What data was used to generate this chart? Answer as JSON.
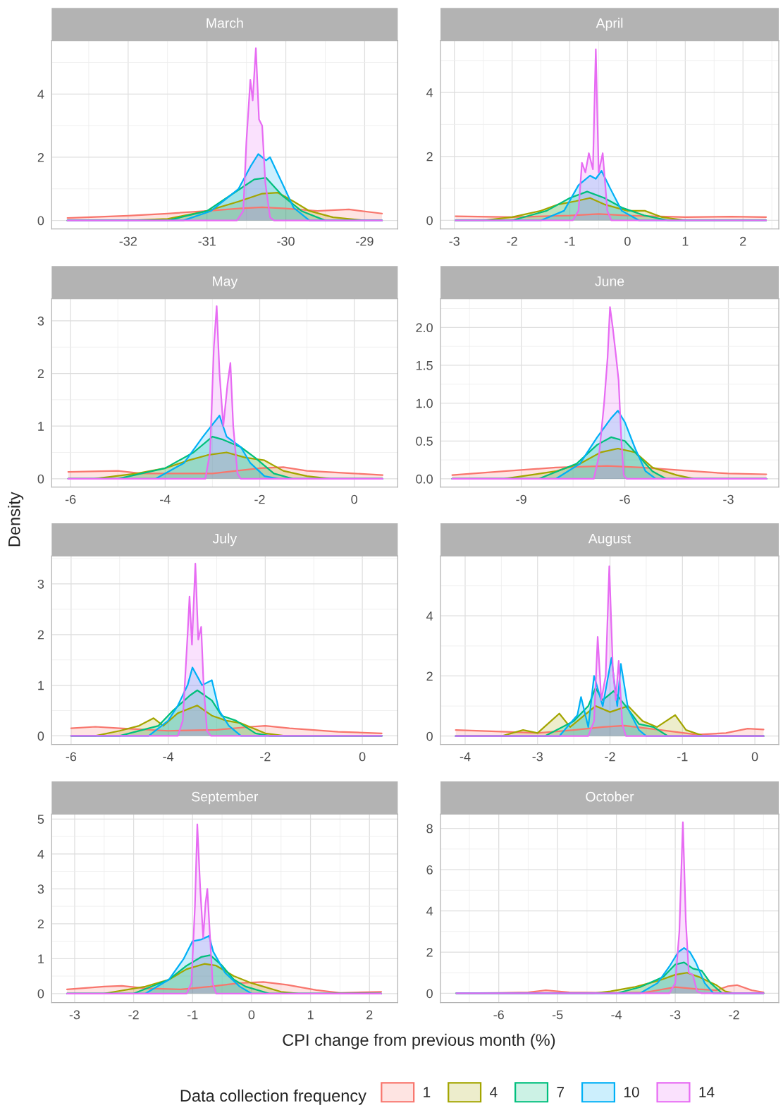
{
  "chart_data": [
    {
      "type": "area",
      "title": "March",
      "legend_title": "Data collection frequency",
      "legend": "bottom",
      "grid": true,
      "xlim": [
        -32.97,
        -28.58
      ],
      "ylim": [
        -0.27,
        5.69
      ],
      "xticks": [
        -32,
        -31,
        -30,
        -29
      ],
      "yticks": [
        0,
        2,
        4
      ],
      "series": [
        {
          "name": "1",
          "color": "#F8766D",
          "x": [
            -32.77,
            -32,
            -31.5,
            -31,
            -30.6,
            -30.3,
            -30,
            -29.6,
            -29.2,
            -28.78
          ],
          "values": [
            0.08,
            0.15,
            0.22,
            0.3,
            0.38,
            0.42,
            0.38,
            0.3,
            0.35,
            0.22
          ]
        },
        {
          "name": "4",
          "color": "#A3A500",
          "x": [
            -32.77,
            -32,
            -31.5,
            -31,
            -30.6,
            -30.3,
            -30.1,
            -29.9,
            -29.7,
            -29.4,
            -29,
            -28.78
          ],
          "values": [
            0,
            0,
            0.05,
            0.3,
            0.6,
            0.85,
            0.88,
            0.6,
            0.3,
            0.1,
            0,
            0
          ]
        },
        {
          "name": "7",
          "color": "#00BF7D",
          "x": [
            -32.77,
            -31.5,
            -31,
            -30.7,
            -30.4,
            -30.25,
            -30.05,
            -29.8,
            -29.5,
            -28.78
          ],
          "values": [
            0,
            0,
            0.3,
            0.8,
            1.3,
            1.35,
            0.8,
            0.3,
            0,
            0
          ]
        },
        {
          "name": "10",
          "color": "#00B0F6",
          "x": [
            -32.77,
            -31.3,
            -30.95,
            -30.6,
            -30.45,
            -30.35,
            -30.25,
            -30.2,
            -30.05,
            -29.9,
            -29.7,
            -28.78
          ],
          "values": [
            0,
            0,
            0.3,
            1.0,
            1.7,
            2.1,
            1.9,
            2.0,
            1.2,
            0.4,
            0,
            0
          ]
        },
        {
          "name": "14",
          "color": "#E76BF3",
          "x": [
            -32.77,
            -30.62,
            -30.54,
            -30.5,
            -30.45,
            -30.42,
            -30.38,
            -30.34,
            -30.3,
            -30.26,
            -30.2,
            -30.15,
            -28.78
          ],
          "values": [
            0,
            0,
            0.3,
            2.5,
            4.45,
            3.8,
            5.45,
            3.2,
            3.0,
            1.2,
            0.1,
            0,
            0
          ]
        }
      ]
    },
    {
      "type": "area",
      "title": "April",
      "grid": true,
      "xlim": [
        -3.24,
        2.62
      ],
      "ylim": [
        -0.27,
        5.62
      ],
      "xticks": [
        -3,
        -2,
        -1,
        0,
        1,
        2
      ],
      "yticks": [
        0,
        2,
        4
      ],
      "series": [
        {
          "color": "#F8766D",
          "x": [
            -2.98,
            -2,
            -1,
            -0.5,
            0,
            1,
            1.8,
            2.4
          ],
          "values": [
            0.13,
            0.1,
            0.15,
            0.2,
            0.15,
            0.1,
            0.12,
            0.1
          ]
        },
        {
          "color": "#A3A500",
          "x": [
            -2.98,
            -2.5,
            -2,
            -1.5,
            -1.2,
            -0.9,
            -0.65,
            -0.4,
            0,
            0.3,
            0.6,
            1.0,
            2.4
          ],
          "values": [
            0,
            0,
            0.1,
            0.3,
            0.5,
            0.6,
            0.7,
            0.5,
            0.3,
            0.3,
            0.1,
            0,
            0
          ]
        },
        {
          "color": "#00BF7D",
          "x": [
            -2.98,
            -2,
            -1.4,
            -1.0,
            -0.7,
            -0.4,
            -0.1,
            0.3,
            0.7,
            2.4
          ],
          "values": [
            0,
            0,
            0.3,
            0.7,
            0.9,
            0.7,
            0.4,
            0.15,
            0,
            0
          ]
        },
        {
          "color": "#00B0F6",
          "x": [
            -2.98,
            -1.5,
            -1.1,
            -0.85,
            -0.65,
            -0.55,
            -0.45,
            -0.3,
            -0.1,
            0.2,
            2.4
          ],
          "values": [
            0,
            0,
            0.3,
            1.1,
            1.4,
            1.3,
            1.55,
            1.0,
            0.3,
            0,
            0
          ]
        },
        {
          "color": "#E76BF3",
          "x": [
            -2.98,
            -0.95,
            -0.85,
            -0.79,
            -0.73,
            -0.67,
            -0.6,
            -0.55,
            -0.5,
            -0.43,
            -0.35,
            -0.28,
            2.4
          ],
          "values": [
            0,
            0,
            0.3,
            1.8,
            1.5,
            2.1,
            1.6,
            5.35,
            1.5,
            2.1,
            0.3,
            0,
            0
          ]
        }
      ]
    },
    {
      "type": "area",
      "title": "May",
      "grid": true,
      "xlim": [
        -6.4,
        0.92
      ],
      "ylim": [
        -0.16,
        3.42
      ],
      "xticks": [
        -6,
        -4,
        -2,
        0
      ],
      "yticks": [
        0,
        1,
        2,
        3
      ],
      "series": [
        {
          "color": "#F8766D",
          "x": [
            -6.05,
            -5,
            -4.5,
            -3,
            -2.5,
            -2,
            -1.5,
            -1,
            0,
            0.6
          ],
          "values": [
            0.13,
            0.15,
            0.1,
            0.1,
            0.15,
            0.2,
            0.22,
            0.15,
            0.1,
            0.07
          ]
        },
        {
          "color": "#A3A500",
          "x": [
            -6.05,
            -5.5,
            -4.6,
            -4,
            -3.5,
            -3.1,
            -2.7,
            -2.3,
            -1.9,
            -1.5,
            -1,
            -0.5,
            0.6
          ],
          "values": [
            0,
            0,
            0.1,
            0.2,
            0.35,
            0.45,
            0.5,
            0.4,
            0.35,
            0.15,
            0.05,
            0,
            0
          ]
        },
        {
          "color": "#00BF7D",
          "x": [
            -6.05,
            -5,
            -4,
            -3.4,
            -3.0,
            -2.8,
            -2.4,
            -2.1,
            -1.7,
            -1.3,
            0.6
          ],
          "values": [
            0,
            0,
            0.2,
            0.5,
            0.8,
            0.75,
            0.6,
            0.4,
            0.1,
            0,
            0
          ]
        },
        {
          "color": "#00B0F6",
          "x": [
            -6.05,
            -4.2,
            -3.6,
            -3.2,
            -2.85,
            -2.7,
            -2.4,
            -2.2,
            -1.9,
            -1.6,
            0.6
          ],
          "values": [
            0,
            0,
            0.3,
            0.8,
            1.2,
            0.8,
            0.6,
            0.3,
            0.05,
            0,
            0
          ]
        },
        {
          "color": "#E76BF3",
          "x": [
            -6.05,
            -3.15,
            -3.05,
            -2.97,
            -2.91,
            -2.85,
            -2.77,
            -2.68,
            -2.62,
            -2.56,
            -2.47,
            -2.4,
            0.6
          ],
          "values": [
            0,
            0,
            0.5,
            2.5,
            3.28,
            2.0,
            1.0,
            1.8,
            2.2,
            1.0,
            0.1,
            0,
            0
          ]
        }
      ]
    },
    {
      "type": "area",
      "title": "June",
      "grid": true,
      "xlim": [
        -11.34,
        -1.54
      ],
      "ylim": [
        -0.11,
        2.38
      ],
      "xticks": [
        -9,
        -6,
        -3
      ],
      "yticks": [
        {
          "value": 0,
          "label": "0.0"
        },
        {
          "value": 0.5,
          "label": "0.5"
        },
        {
          "value": 1,
          "label": "1.0"
        },
        {
          "value": 1.5,
          "label": "1.5"
        },
        {
          "value": 2,
          "label": "2.0"
        }
      ],
      "series": [
        {
          "color": "#F8766D",
          "x": [
            -11.0,
            -9.5,
            -8,
            -6.5,
            -5.5,
            -4,
            -3,
            -1.9
          ],
          "values": [
            0.05,
            0.1,
            0.15,
            0.17,
            0.15,
            0.1,
            0.07,
            0.06
          ]
        },
        {
          "color": "#A3A500",
          "x": [
            -11.0,
            -9.5,
            -8,
            -7.3,
            -6.7,
            -6.2,
            -5.7,
            -5.2,
            -4.5,
            -4,
            -1.9
          ],
          "values": [
            0,
            0,
            0.1,
            0.2,
            0.35,
            0.4,
            0.35,
            0.15,
            0.05,
            0,
            0
          ]
        },
        {
          "color": "#00BF7D",
          "x": [
            -11.0,
            -8.5,
            -7.4,
            -6.8,
            -6.4,
            -6.0,
            -5.6,
            -5.2,
            -4.8,
            -1.9
          ],
          "values": [
            0,
            0,
            0.2,
            0.45,
            0.55,
            0.5,
            0.3,
            0.1,
            0,
            0
          ]
        },
        {
          "color": "#00B0F6",
          "x": [
            -11.0,
            -8,
            -7.3,
            -6.8,
            -6.4,
            -6.2,
            -6.0,
            -5.7,
            -5.4,
            -5.1,
            -1.9
          ],
          "values": [
            0,
            0,
            0.2,
            0.55,
            0.8,
            0.9,
            0.75,
            0.4,
            0.1,
            0,
            0
          ]
        },
        {
          "color": "#E76BF3",
          "x": [
            -11.0,
            -6.9,
            -6.75,
            -6.6,
            -6.5,
            -6.43,
            -6.35,
            -6.25,
            -6.18,
            -6.1,
            -6.03,
            -5.95,
            -1.9
          ],
          "values": [
            0,
            0,
            0.3,
            1.0,
            1.6,
            2.27,
            2.0,
            1.6,
            1.3,
            0.5,
            0.05,
            0,
            0
          ]
        }
      ]
    },
    {
      "type": "area",
      "title": "July",
      "ylabel": "Density",
      "grid": true,
      "xlim": [
        -6.4,
        0.73
      ],
      "ylim": [
        -0.17,
        3.55
      ],
      "xticks": [
        -6,
        -4,
        -2,
        0
      ],
      "yticks": [
        0,
        1,
        2,
        3
      ],
      "series": [
        {
          "color": "#F8766D",
          "x": [
            -6,
            -5.5,
            -5,
            -4,
            -3,
            -2.3,
            -2,
            -1.5,
            -0.5,
            0.4
          ],
          "values": [
            0.15,
            0.18,
            0.15,
            0.1,
            0.12,
            0.18,
            0.2,
            0.15,
            0.08,
            0.05
          ]
        },
        {
          "color": "#A3A500",
          "x": [
            -6,
            -5.5,
            -5,
            -4.6,
            -4.3,
            -4.1,
            -3.8,
            -3.4,
            -3.1,
            -2.8,
            -2.5,
            -2,
            -1.6,
            0.4
          ],
          "values": [
            0,
            0,
            0.1,
            0.2,
            0.35,
            0.2,
            0.45,
            0.6,
            0.4,
            0.3,
            0.25,
            0.05,
            0,
            0
          ]
        },
        {
          "color": "#00BF7D",
          "x": [
            -6,
            -5,
            -4.2,
            -3.9,
            -3.55,
            -3.4,
            -3.1,
            -2.9,
            -2.6,
            -2.2,
            -1.9,
            0.4
          ],
          "values": [
            0,
            0,
            0.2,
            0.5,
            0.8,
            0.9,
            0.7,
            0.4,
            0.3,
            0.05,
            0,
            0
          ]
        },
        {
          "color": "#00B0F6",
          "x": [
            -6,
            -4.4,
            -4.0,
            -3.8,
            -3.6,
            -3.5,
            -3.3,
            -3.1,
            -2.95,
            -2.75,
            -2.5,
            0.4
          ],
          "values": [
            0,
            0,
            0.3,
            0.6,
            1.0,
            1.35,
            1.0,
            1.1,
            0.5,
            0.2,
            0,
            0
          ]
        },
        {
          "color": "#E76BF3",
          "x": [
            -6,
            -3.8,
            -3.7,
            -3.6,
            -3.56,
            -3.51,
            -3.44,
            -3.38,
            -3.32,
            -3.27,
            -3.2,
            -3.12,
            0.4
          ],
          "values": [
            0,
            0,
            0.3,
            2.0,
            2.75,
            1.8,
            3.4,
            1.9,
            2.15,
            1.0,
            0.1,
            0,
            0
          ]
        }
      ]
    },
    {
      "type": "area",
      "title": "August",
      "grid": true,
      "xlim": [
        -4.34,
        0.33
      ],
      "ylim": [
        -0.28,
        5.99
      ],
      "xticks": [
        -4,
        -3,
        -2,
        -1,
        0
      ],
      "yticks": [
        0,
        2,
        4
      ],
      "series": [
        {
          "color": "#F8766D",
          "x": [
            -4.13,
            -3.5,
            -3,
            -2.5,
            -2.1,
            -1.8,
            -1.3,
            -0.8,
            -0.4,
            -0.1,
            0.12
          ],
          "values": [
            0.2,
            0.15,
            0.1,
            0.2,
            0.3,
            0.35,
            0.2,
            0.05,
            0.1,
            0.25,
            0.22
          ]
        },
        {
          "color": "#A3A500",
          "x": [
            -4.13,
            -3.5,
            -3.2,
            -3.0,
            -2.7,
            -2.55,
            -2.35,
            -2.2,
            -2.0,
            -1.75,
            -1.55,
            -1.35,
            -1.1,
            -0.95,
            -0.7,
            0.12
          ],
          "values": [
            0,
            0,
            0.2,
            0.1,
            0.75,
            0.3,
            0.7,
            1.0,
            0.8,
            1.0,
            0.5,
            0.3,
            0.7,
            0.2,
            0,
            0
          ]
        },
        {
          "color": "#00BF7D",
          "x": [
            -4.13,
            -2.9,
            -2.5,
            -2.3,
            -2.2,
            -2.1,
            -1.95,
            -1.75,
            -1.6,
            -1.4,
            -1.2,
            0.12
          ],
          "values": [
            0,
            0,
            0.5,
            1.0,
            1.6,
            1.2,
            1.5,
            0.9,
            0.4,
            0.3,
            0,
            0
          ]
        },
        {
          "color": "#00B0F6",
          "x": [
            -4.13,
            -2.7,
            -2.45,
            -2.4,
            -2.3,
            -2.22,
            -2.1,
            -1.98,
            -1.9,
            -1.85,
            -1.75,
            -1.6,
            -1.5,
            0.12
          ],
          "values": [
            0,
            0,
            0.7,
            1.3,
            0.3,
            2.0,
            1.0,
            2.6,
            1.0,
            2.4,
            0.9,
            0.2,
            0,
            0
          ]
        },
        {
          "color": "#E76BF3",
          "x": [
            -4.13,
            -2.3,
            -2.22,
            -2.17,
            -2.12,
            -2.06,
            -2.01,
            -1.96,
            -1.92,
            -1.88,
            -1.83,
            -1.78,
            0.12
          ],
          "values": [
            0,
            0,
            0.5,
            3.3,
            1.2,
            2.0,
            5.65,
            2.2,
            1.2,
            2.5,
            0.4,
            0,
            0
          ]
        }
      ]
    },
    {
      "type": "area",
      "title": "September",
      "xlabel": "CPI change from previous month (%)",
      "grid": true,
      "xlim": [
        -3.39,
        2.48
      ],
      "ylim": [
        -0.26,
        5.14
      ],
      "xticks": [
        -3,
        -2,
        -1,
        0,
        1,
        2
      ],
      "yticks": [
        0,
        1,
        2,
        3,
        4,
        5
      ],
      "series": [
        {
          "color": "#F8766D",
          "x": [
            -3.13,
            -2.5,
            -2.2,
            -1.8,
            -1.2,
            -0.7,
            -0.2,
            0.2,
            0.6,
            1.1,
            1.5,
            2.2
          ],
          "values": [
            0.12,
            0.2,
            0.22,
            0.15,
            0.12,
            0.2,
            0.3,
            0.33,
            0.25,
            0.1,
            0.02,
            0.05
          ]
        },
        {
          "color": "#A3A500",
          "x": [
            -3.13,
            -2.5,
            -1.8,
            -1.4,
            -1.1,
            -0.8,
            -0.6,
            -0.3,
            0,
            0.2,
            0.5,
            0.8,
            2.2
          ],
          "values": [
            0,
            0,
            0.2,
            0.4,
            0.7,
            0.85,
            0.8,
            0.5,
            0.3,
            0.2,
            0.05,
            0,
            0
          ]
        },
        {
          "color": "#00BF7D",
          "x": [
            -3.13,
            -2,
            -1.4,
            -1.1,
            -0.85,
            -0.7,
            -0.5,
            -0.3,
            -0.1,
            0.3,
            2.2
          ],
          "values": [
            0,
            0,
            0.4,
            0.8,
            1.05,
            1.1,
            0.8,
            0.4,
            0.2,
            0,
            0
          ]
        },
        {
          "color": "#00B0F6",
          "x": [
            -3.13,
            -1.8,
            -1.4,
            -1.15,
            -1.0,
            -0.85,
            -0.72,
            -0.65,
            -0.45,
            -0.2,
            0,
            2.2
          ],
          "values": [
            0,
            0,
            0.4,
            1.0,
            1.5,
            1.55,
            1.65,
            1.2,
            0.6,
            0.2,
            0,
            0
          ]
        },
        {
          "color": "#E76BF3",
          "x": [
            -3.13,
            -1.1,
            -1.02,
            -0.96,
            -0.92,
            -0.87,
            -0.82,
            -0.78,
            -0.75,
            -0.71,
            -0.66,
            -0.6,
            2.2
          ],
          "values": [
            0,
            0,
            0.3,
            2.5,
            4.85,
            3.0,
            1.6,
            2.6,
            3.0,
            1.8,
            0.3,
            0,
            0
          ]
        }
      ]
    },
    {
      "type": "area",
      "title": "October",
      "grid": true,
      "xlim": [
        -6.99,
        -1.24
      ],
      "ylim": [
        -0.45,
        8.69
      ],
      "xticks": [
        -6,
        -5,
        -4,
        -3,
        -2
      ],
      "yticks": [
        0,
        2,
        4,
        6,
        8
      ],
      "series": [
        {
          "color": "#F8766D",
          "x": [
            -6.72,
            -6,
            -5.5,
            -5.2,
            -4.8,
            -4,
            -3.5,
            -3.0,
            -2.6,
            -2.3,
            -2.1,
            -1.95,
            -1.7,
            -1.5
          ],
          "values": [
            0,
            0.02,
            0.05,
            0.15,
            0.05,
            0.02,
            0.05,
            0.3,
            0.2,
            0.15,
            0.35,
            0.4,
            0.15,
            0.05
          ]
        },
        {
          "color": "#A3A500",
          "x": [
            -6.72,
            -4.4,
            -4.1,
            -3.7,
            -3.3,
            -3.0,
            -2.8,
            -2.6,
            -2.45,
            -2.3,
            -2.15,
            -2,
            -1.5
          ],
          "values": [
            0,
            0,
            0.1,
            0.3,
            0.6,
            0.9,
            1.0,
            0.8,
            0.6,
            0.4,
            0.1,
            0,
            0
          ]
        },
        {
          "color": "#00BF7D",
          "x": [
            -6.72,
            -4.0,
            -3.6,
            -3.2,
            -3.0,
            -2.85,
            -2.7,
            -2.55,
            -2.4,
            -2.2,
            -1.5
          ],
          "values": [
            0,
            0,
            0.3,
            0.8,
            1.4,
            1.5,
            1.2,
            1.1,
            0.5,
            0,
            0
          ]
        },
        {
          "color": "#00B0F6",
          "x": [
            -6.72,
            -3.6,
            -3.3,
            -3.1,
            -2.95,
            -2.85,
            -2.75,
            -2.65,
            -2.5,
            -2.35,
            -1.5
          ],
          "values": [
            0,
            0,
            0.5,
            1.3,
            2.0,
            2.2,
            2.0,
            1.5,
            0.5,
            0,
            0
          ]
        },
        {
          "color": "#E76BF3",
          "x": [
            -6.72,
            -3.1,
            -3.0,
            -2.93,
            -2.87,
            -2.82,
            -2.77,
            -2.7,
            -2.63,
            -2.55,
            -1.5
          ],
          "values": [
            0,
            0,
            0.5,
            3.0,
            8.3,
            3.5,
            1.0,
            0.9,
            0.1,
            0,
            0
          ]
        }
      ]
    }
  ]
}
